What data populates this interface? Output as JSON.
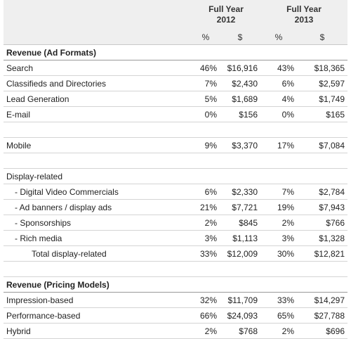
{
  "header": {
    "groups": [
      {
        "title": "Full Year",
        "year": "2012",
        "columns": [
          "%",
          "$"
        ]
      },
      {
        "title": "Full Year",
        "year": "2013",
        "columns": [
          "%",
          "$"
        ]
      }
    ]
  },
  "table": {
    "rows": [
      {
        "label": "Revenue (Ad Formats)"
      },
      {
        "label": "Search",
        "cells": [
          "46%",
          "$16,916",
          "43%",
          "$18,365"
        ]
      },
      {
        "label": "Classifieds and Directories",
        "cells": [
          "7%",
          "$2,430",
          "6%",
          "$2,597"
        ]
      },
      {
        "label": "Lead Generation",
        "cells": [
          "5%",
          "$1,689",
          "4%",
          "$1,749"
        ]
      },
      {
        "label": "E-mail",
        "cells": [
          "0%",
          "$156",
          "0%",
          "$165"
        ]
      },
      {
        "label": "Mobile",
        "cells": [
          "9%",
          "$3,370",
          "17%",
          "$7,084"
        ]
      },
      {
        "label": "Display-related"
      },
      {
        "label": "- Digital Video Commercials",
        "cells": [
          "6%",
          "$2,330",
          "7%",
          "$2,784"
        ]
      },
      {
        "label": "- Ad banners / display ads",
        "cells": [
          "21%",
          "$7,721",
          "19%",
          "$7,943"
        ]
      },
      {
        "label": "- Sponsorships",
        "cells": [
          "2%",
          "$845",
          "2%",
          "$766"
        ]
      },
      {
        "label": "- Rich media",
        "cells": [
          "3%",
          "$1,113",
          "3%",
          "$1,328"
        ]
      },
      {
        "label": "Total display-related",
        "cells": [
          "33%",
          "$12,009",
          "30%",
          "$12,821"
        ]
      },
      {
        "label": "Revenue (Pricing Models)"
      },
      {
        "label": "Impression-based",
        "cells": [
          "32%",
          "$11,709",
          "33%",
          "$14,297"
        ]
      },
      {
        "label": "Performance-based",
        "cells": [
          "66%",
          "$24,093",
          "65%",
          "$27,788"
        ]
      },
      {
        "label": "Hybrid",
        "cells": [
          "2%",
          "$768",
          "2%",
          "$696"
        ]
      }
    ]
  }
}
